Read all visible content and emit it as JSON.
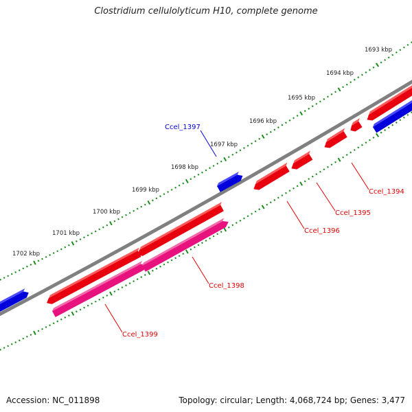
{
  "title": "Clostridium cellulolyticum H10, complete genome",
  "footer": {
    "accession": "Accession: NC_011898",
    "summary": "Topology: circular; Length: 4,068,724 bp; Genes: 3,477"
  },
  "colors": {
    "forward_gene": "#e8000f",
    "reverse_gene": "#e8127e",
    "other_gene": "#0000dd",
    "backbone": "#808080",
    "ruler_dots": "#1a8a1a",
    "callout_red": "#e00000",
    "callout_blue": "#0000cc"
  },
  "ruler_labels": [
    "1693 kbp",
    "1694 kbp",
    "1695 kbp",
    "1696 kbp",
    "1697 kbp",
    "1698 kbp",
    "1699 kbp",
    "1700 kbp",
    "1701 kbp",
    "1702 kbp"
  ],
  "gene_labels": [
    {
      "name": "Ccel_1394",
      "color": "red"
    },
    {
      "name": "Ccel_1395",
      "color": "red"
    },
    {
      "name": "Ccel_1396",
      "color": "red"
    },
    {
      "name": "Ccel_1397",
      "color": "blue"
    },
    {
      "name": "Ccel_1398",
      "color": "red"
    },
    {
      "name": "Ccel_1399",
      "color": "red"
    }
  ]
}
